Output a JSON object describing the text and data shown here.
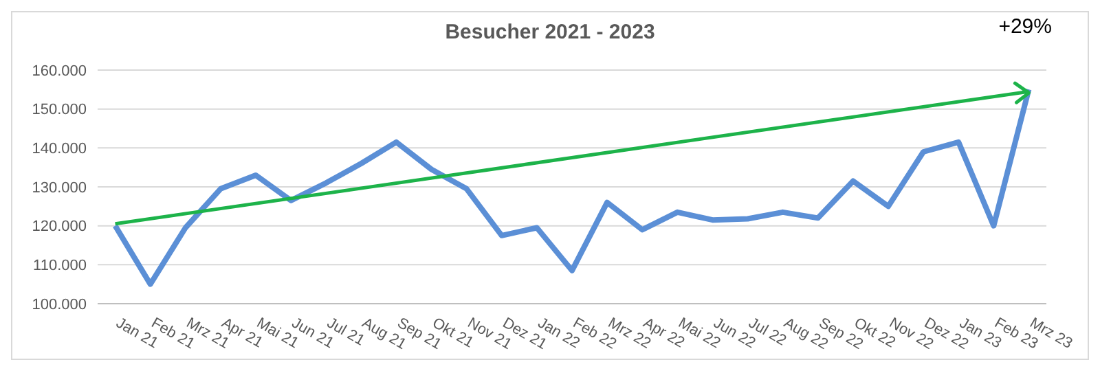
{
  "chart_data": {
    "type": "line",
    "title": "Besucher 2021 - 2023",
    "categories": [
      "Jan 21",
      "Feb 21",
      "Mrz 21",
      "Apr 21",
      "Mai 21",
      "Jun 21",
      "Jul 21",
      "Aug 21",
      "Sep 21",
      "Okt 21",
      "Nov 21",
      "Dez 21",
      "Jan 22",
      "Feb 22",
      "Mrz 22",
      "Apr 22",
      "Mai 22",
      "Jun 22",
      "Jul 22",
      "Aug 22",
      "Sep 22",
      "Okt 22",
      "Nov 22",
      "Dez 22",
      "Jan 23",
      "Feb 23",
      "Mrz 23"
    ],
    "series": [
      {
        "color": "#5b8fd6",
        "values": [
          120000,
          105000,
          119500,
          129500,
          133000,
          126500,
          131000,
          136000,
          141500,
          134500,
          129500,
          117500,
          119500,
          108500,
          126000,
          119000,
          123500,
          121500,
          121800,
          123500,
          122000,
          131500,
          125000,
          139000,
          141500,
          120000,
          155000
        ]
      },
      {
        "type": "line",
        "color": "#1db34a",
        "x": [
          "Jan 21",
          "Mrz 23"
        ],
        "values": [
          120500,
          154500
        ]
      }
    ],
    "annotations": [
      "+29%"
    ],
    "ylim": [
      100000,
      160000
    ],
    "yticks": [
      {
        "value": 100000,
        "label": "100.000"
      },
      {
        "value": 110000,
        "label": "110.000"
      },
      {
        "value": 120000,
        "label": "120.000"
      },
      {
        "value": 130000,
        "label": "130.000"
      },
      {
        "value": 140000,
        "label": "140.000"
      },
      {
        "value": 150000,
        "label": "150.000"
      },
      {
        "value": 160000,
        "label": "160.000"
      }
    ],
    "grid": "y",
    "legend": false,
    "line_style": "solid"
  }
}
